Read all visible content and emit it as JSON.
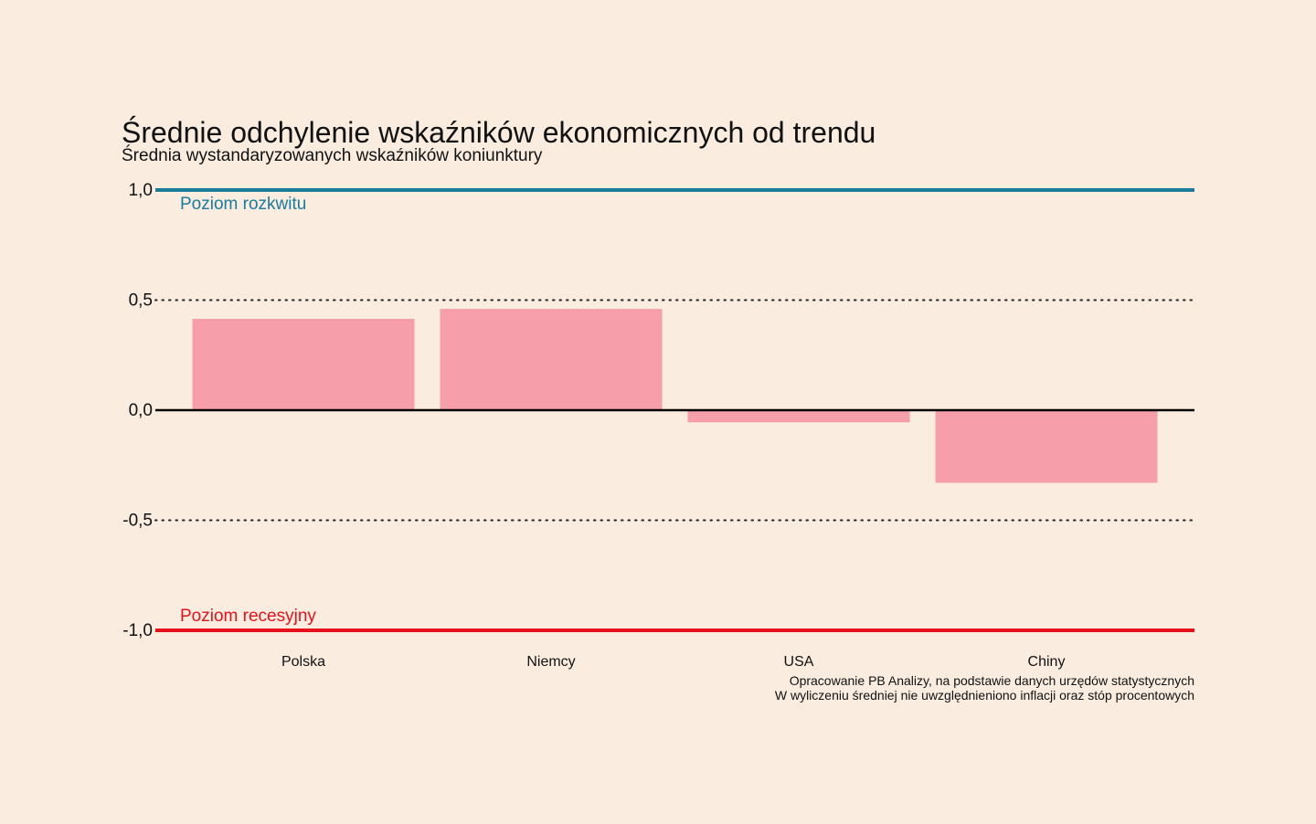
{
  "chart_data": {
    "type": "bar",
    "title": "Średnie odchylenie wskaźników ekonomicznych od trendu",
    "subtitle": "Średnia wystandaryzowanych wskaźników koniunktury",
    "categories": [
      "Polska",
      "Niemcy",
      "USA",
      "Chiny"
    ],
    "values": [
      0.415,
      0.46,
      -0.055,
      -0.33
    ],
    "ylim": [
      -1.0,
      1.0
    ],
    "yticks": [
      1.0,
      0.5,
      0.0,
      -0.5,
      -1.0
    ],
    "ytick_labels": [
      "1,0",
      "0,5",
      "0,0",
      "-0,5",
      "-1,0"
    ],
    "grid": "dotted at ±0.5",
    "reference_lines": [
      {
        "value": 1.0,
        "label": "Poziom rozkwitu",
        "color": "#1b7b9b"
      },
      {
        "value": -1.0,
        "label": "Poziom recesyjny",
        "color": "#e8101a"
      }
    ],
    "bar_color": "#f69fab",
    "caption": [
      "Opracowanie PB Analizy, na podstawie danych urzędów statystycznych",
      "W wyliczeniu średniej nie uwzględnieniono inflacji oraz stóp procentowych"
    ]
  }
}
